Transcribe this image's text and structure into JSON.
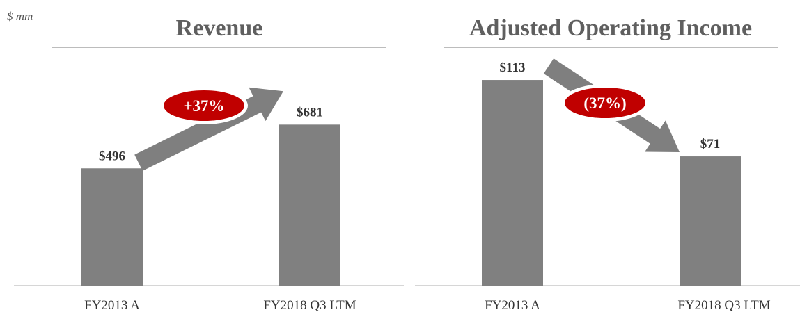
{
  "unit_label": "$ mm",
  "colors": {
    "bar": "#808080",
    "arrow": "#7f7f7f",
    "badge": "#c00000",
    "badge_text": "#ffffff",
    "rule": "#a6a6a6",
    "text": "#333333",
    "title": "#5f5f5f"
  },
  "chart_data": [
    {
      "type": "bar",
      "title": "Revenue",
      "categories": [
        "FY2013 A",
        "FY2018 Q3 LTM"
      ],
      "values": [
        496,
        681
      ],
      "value_labels": [
        "$496",
        "$681"
      ],
      "change_label": "+37%",
      "change_direction": "up",
      "ylim": [
        0,
        970
      ]
    },
    {
      "type": "bar",
      "title": "Adjusted Operating Income",
      "categories": [
        "FY2013 A",
        "FY2018 Q3 LTM"
      ],
      "values": [
        113,
        71
      ],
      "value_labels": [
        "$113",
        "$71"
      ],
      "change_label": "(37%)",
      "change_direction": "down",
      "ylim": [
        0,
        126
      ]
    }
  ]
}
